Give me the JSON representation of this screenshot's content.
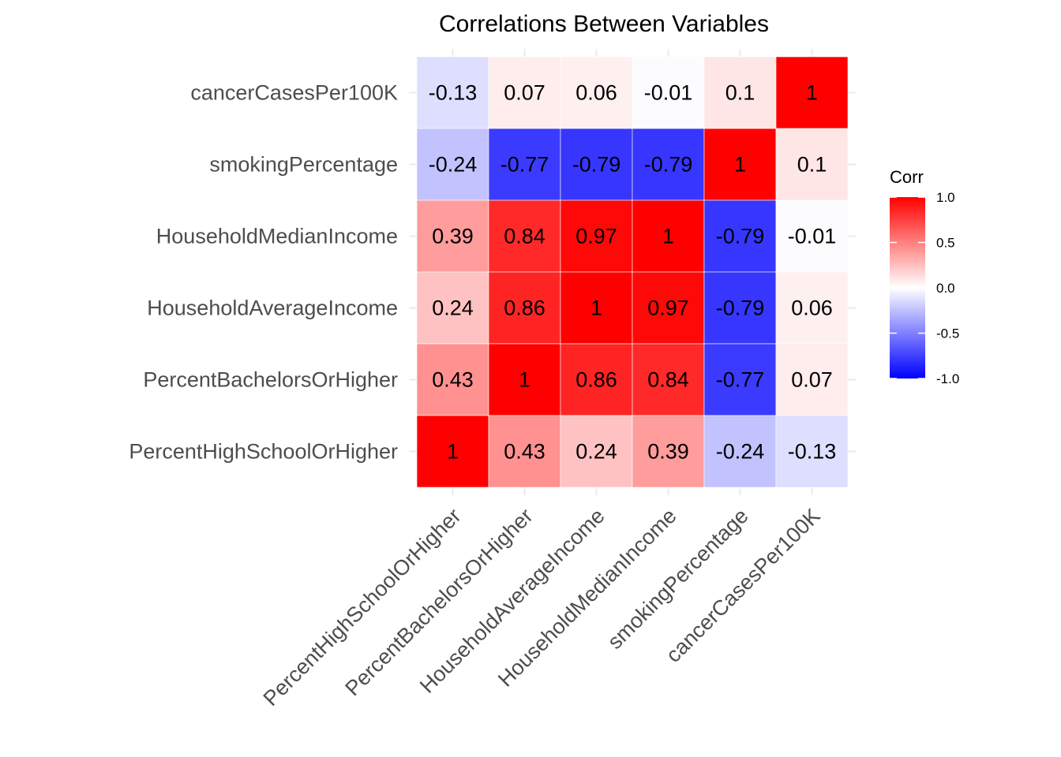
{
  "chart_data": {
    "type": "heatmap",
    "title": "Correlations Between Variables",
    "xlabel": "",
    "ylabel": "",
    "x_categories": [
      "PercentHighSchoolOrHigher",
      "PercentBachelorsOrHigher",
      "HouseholdAverageIncome",
      "HouseholdMedianIncome",
      "smokingPercentage",
      "cancerCasesPer100K"
    ],
    "y_categories": [
      "cancerCasesPer100K",
      "smokingPercentage",
      "HouseholdMedianIncome",
      "HouseholdAverageIncome",
      "PercentBachelorsOrHigher",
      "PercentHighSchoolOrHigher"
    ],
    "values": [
      [
        -0.13,
        0.07,
        0.06,
        -0.01,
        0.1,
        1
      ],
      [
        -0.24,
        -0.77,
        -0.79,
        -0.79,
        1,
        0.1
      ],
      [
        0.39,
        0.84,
        0.97,
        1,
        -0.79,
        -0.01
      ],
      [
        0.24,
        0.86,
        1,
        0.97,
        -0.79,
        0.06
      ],
      [
        0.43,
        1,
        0.86,
        0.84,
        -0.77,
        0.07
      ],
      [
        1,
        0.43,
        0.24,
        0.39,
        -0.24,
        -0.13
      ]
    ],
    "color_scale": {
      "low": "#0000ff",
      "mid": "#ffffff",
      "high": "#ff0000",
      "range": [
        -1,
        1
      ]
    },
    "legend": {
      "title": "Corr",
      "ticks": [
        1.0,
        0.5,
        0.0,
        -0.5,
        -1.0
      ],
      "tick_labels": [
        "1.0",
        "0.5",
        "0.0",
        "-0.5",
        "-1.0"
      ],
      "position": "right"
    },
    "grid": true
  }
}
